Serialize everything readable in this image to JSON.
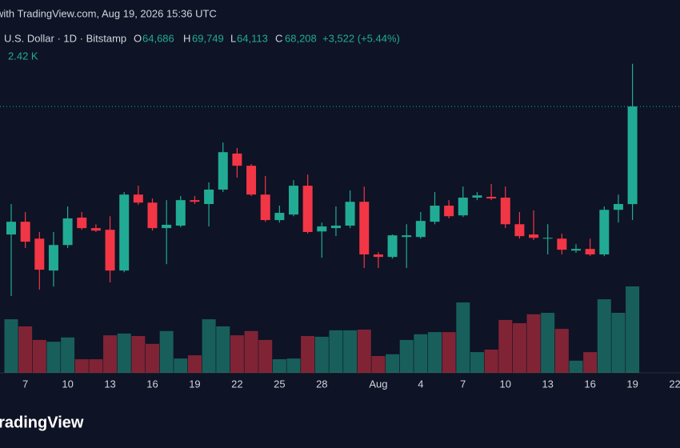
{
  "header": {
    "published": "with TradingView.com, Aug 19, 2026 15:36 UTC",
    "symbol": "U.S. Dollar · 1D · Bitstamp",
    "fields": [
      {
        "key": "O",
        "value": "64,686"
      },
      {
        "key": "H",
        "value": "69,749"
      },
      {
        "key": "L",
        "value": "64,113"
      },
      {
        "key": "C",
        "value": "68,208"
      }
    ],
    "change": "+3,522 (+5.44%)",
    "volume": "2.42 K",
    "logo": "TradingView"
  },
  "chart_data": {
    "type": "candlestick",
    "categories": [
      null,
      "7",
      null,
      null,
      "10",
      null,
      null,
      "13",
      null,
      null,
      "16",
      null,
      null,
      "19",
      null,
      null,
      "22",
      null,
      null,
      "25",
      null,
      null,
      "28",
      null,
      null,
      null,
      "Aug",
      null,
      null,
      "4",
      null,
      null,
      "7",
      null,
      null,
      "10",
      null,
      null,
      "13",
      null,
      null,
      "16",
      null,
      null,
      "19",
      null,
      null,
      "22"
    ],
    "open": [
      63590,
      64050,
      63440,
      62290,
      63210,
      64200,
      63820,
      63760,
      62290,
      65030,
      64740,
      63820,
      63910,
      64830,
      64690,
      65210,
      66510,
      66070,
      65030,
      64110,
      64310,
      65350,
      63700,
      63820,
      63910,
      64770,
      62870,
      62780,
      63500,
      63500,
      64050,
      64630,
      64280,
      64920,
      64950,
      64920,
      63960,
      63590,
      63440,
      63440,
      63010,
      63070,
      62870,
      64480,
      64686,
      null,
      null,
      null
    ],
    "high": [
      64690,
      64400,
      63680,
      63680,
      64600,
      64400,
      63960,
      64250,
      65120,
      65350,
      64890,
      64830,
      64980,
      64980,
      65470,
      66910,
      66710,
      66130,
      65700,
      64630,
      65550,
      65750,
      64020,
      64600,
      65180,
      65320,
      62950,
      63590,
      63960,
      64400,
      65120,
      64830,
      65320,
      65120,
      65410,
      65320,
      64400,
      64460,
      63960,
      63620,
      63240,
      63440,
      64600,
      65030,
      69749,
      null,
      null,
      null
    ],
    "low": [
      61370,
      63100,
      61600,
      61710,
      63100,
      63760,
      63680,
      61860,
      62230,
      64660,
      63730,
      62520,
      63850,
      64690,
      63880,
      65120,
      65640,
      64980,
      64050,
      64020,
      64250,
      63620,
      62750,
      63530,
      63820,
      62380,
      62380,
      62720,
      62380,
      63440,
      63960,
      64170,
      64220,
      64830,
      64830,
      63820,
      63440,
      63390,
      62870,
      62870,
      62930,
      62810,
      62810,
      64020,
      64113,
      null,
      null,
      null
    ],
    "close": [
      64050,
      63330,
      62320,
      63210,
      64170,
      63820,
      63730,
      62290,
      65030,
      64740,
      63820,
      63940,
      64830,
      64770,
      65210,
      66560,
      66070,
      65030,
      64110,
      64370,
      65350,
      63680,
      63880,
      63910,
      64770,
      62870,
      62780,
      63560,
      63560,
      64080,
      64630,
      64250,
      64920,
      65000,
      64890,
      63960,
      63530,
      63470,
      63470,
      63040,
      63070,
      62870,
      64480,
      64690,
      68208,
      null,
      null,
      null
    ],
    "volume": [
      1500,
      1300,
      920,
      870,
      990,
      380,
      380,
      1050,
      1100,
      1030,
      810,
      1170,
      400,
      490,
      1500,
      1300,
      1050,
      1170,
      920,
      380,
      400,
      1030,
      1010,
      1190,
      1190,
      1210,
      470,
      520,
      920,
      1080,
      1140,
      1140,
      1970,
      580,
      650,
      1480,
      1390,
      1640,
      1680,
      1230,
      340,
      580,
      2060,
      1680,
      2420,
      null,
      null,
      null
    ],
    "ylim": [
      58600,
      72050
    ],
    "up_color": "#22ab94",
    "down_color": "#f23645",
    "price_line": true
  }
}
